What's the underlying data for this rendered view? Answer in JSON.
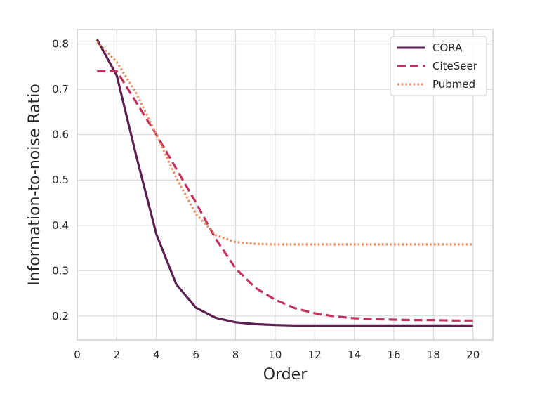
{
  "chart_data": {
    "type": "line",
    "title": "",
    "xlabel": "Order",
    "ylabel": "Information-to-noise Ratio",
    "xlim": [
      0,
      21
    ],
    "ylim": [
      0.147,
      0.832
    ],
    "xticks": [
      0,
      2,
      4,
      6,
      8,
      10,
      12,
      14,
      16,
      18,
      20
    ],
    "yticks": [
      0.2,
      0.3,
      0.4,
      0.5,
      0.6,
      0.7,
      0.8
    ],
    "xtick_labels": [
      "0",
      "2",
      "4",
      "6",
      "8",
      "10",
      "12",
      "14",
      "16",
      "18",
      "20"
    ],
    "ytick_labels": [
      "0.2",
      "0.3",
      "0.4",
      "0.5",
      "0.6",
      "0.7",
      "0.8"
    ],
    "grid": true,
    "legend_position": "top-right",
    "x": [
      1,
      2,
      3,
      4,
      5,
      6,
      7,
      8,
      9,
      10,
      11,
      12,
      13,
      14,
      15,
      16,
      17,
      18,
      19,
      20
    ],
    "series": [
      {
        "name": "CORA",
        "color": "#5b1f52",
        "style": "solid",
        "values": [
          0.81,
          0.73,
          0.55,
          0.38,
          0.27,
          0.218,
          0.196,
          0.186,
          0.182,
          0.18,
          0.179,
          0.179,
          0.179,
          0.179,
          0.179,
          0.179,
          0.179,
          0.179,
          0.179,
          0.179
        ]
      },
      {
        "name": "CiteSeer",
        "color": "#c1325c",
        "style": "dashed",
        "values": [
          0.74,
          0.74,
          0.67,
          0.6,
          0.525,
          0.45,
          0.37,
          0.305,
          0.262,
          0.236,
          0.217,
          0.206,
          0.199,
          0.195,
          0.193,
          0.192,
          0.191,
          0.191,
          0.19,
          0.19
        ]
      },
      {
        "name": "Pubmed",
        "color": "#ec8a5e",
        "style": "dotted",
        "values": [
          0.805,
          0.76,
          0.69,
          0.6,
          0.505,
          0.425,
          0.378,
          0.363,
          0.359,
          0.358,
          0.358,
          0.358,
          0.358,
          0.358,
          0.358,
          0.358,
          0.358,
          0.358,
          0.358,
          0.358
        ]
      }
    ]
  }
}
